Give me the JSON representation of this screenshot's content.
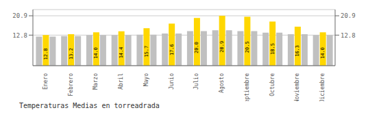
{
  "chart_data": {
    "type": "bar",
    "title": "Temperaturas Medias en torreadrada",
    "categories": [
      "Enero",
      "Febrero",
      "Marzo",
      "Abril",
      "Mayo",
      "Junio",
      "Julio",
      "Agosto",
      "Septiembre",
      "Octubre",
      "Noviembre",
      "Diciembre"
    ],
    "series": [
      {
        "color": "#C0C0C0",
        "values": [
          12.2,
          12.4,
          12.8,
          12.8,
          13.0,
          13.5,
          14.5,
          14.8,
          14.5,
          13.8,
          13.2,
          12.8
        ]
      },
      {
        "color": "#FFD700",
        "values": [
          12.8,
          13.2,
          14.0,
          14.4,
          15.7,
          17.6,
          20.0,
          20.9,
          20.5,
          18.5,
          16.3,
          14.0
        ],
        "data_labels": true,
        "value_labels": [
          "12.8",
          "13.2",
          "14.0",
          "14.4",
          "15.7",
          "17.6",
          "20.0",
          "20.9",
          "20.5",
          "18.5",
          "16.3",
          "14.0"
        ]
      },
      {
        "color": "#C0C0C0",
        "values": [
          12.2,
          12.4,
          12.8,
          12.8,
          13.0,
          13.5,
          14.5,
          14.8,
          14.5,
          13.8,
          13.2,
          12.8
        ]
      }
    ],
    "ylim": [
      0,
      23.5
    ],
    "yticks": [
      12.8,
      20.9
    ],
    "y2lim": [
      0,
      23.5
    ],
    "y2ticks": [
      12.8,
      20.9
    ],
    "grid": true
  }
}
